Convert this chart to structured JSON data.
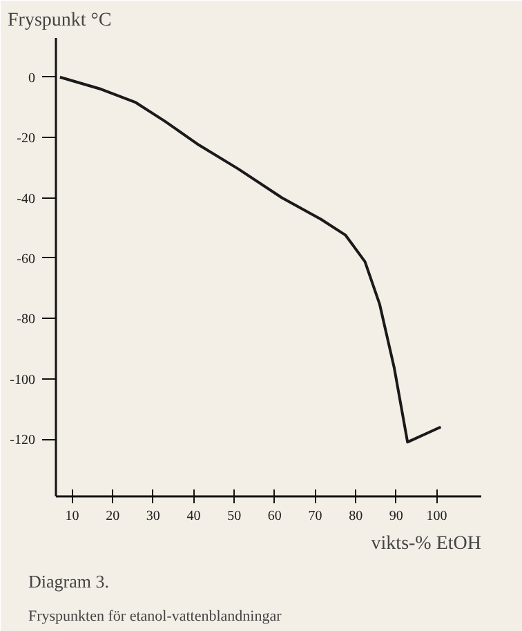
{
  "chart_data": {
    "type": "line",
    "ylabel": "Fryspunkt °C",
    "xlabel": "vikts-% EtOH",
    "annotations": [
      "Diagram 3.",
      "Fryspunkten för etanol-vattenblandningar"
    ],
    "x": [
      7,
      17.2,
      25.7,
      32.9,
      41.3,
      51,
      61.8,
      71.4,
      77.5,
      82.3,
      85.9,
      89.5,
      92.8,
      101
    ],
    "values": [
      0,
      -4,
      -8.4,
      -14.6,
      -22.5,
      -30.4,
      -40,
      -47.1,
      -52.4,
      -61.2,
      -75.2,
      -96.3,
      -121,
      -116
    ],
    "color": "#1a1a1a",
    "xlim": [
      6,
      111
    ],
    "ylim": [
      -139,
      13
    ],
    "xticks": [
      10,
      20,
      30,
      40,
      50,
      60,
      70,
      80,
      90,
      100
    ],
    "yticks": [
      0,
      -20,
      -40,
      -60,
      -80,
      -100,
      -120
    ],
    "grid": false,
    "line_style": "solid",
    "marker": "none"
  }
}
